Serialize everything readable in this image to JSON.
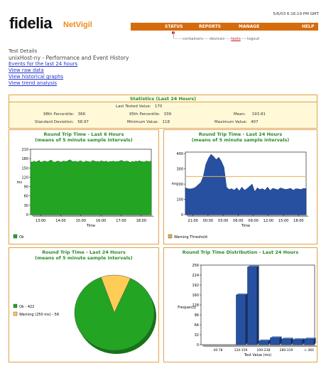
{
  "header": {
    "datetime": "5/6/03 6:16:19 PM GMT",
    "logo": "fidelia",
    "product": "NetVigil",
    "nav": [
      "STATUS",
      "REPORTS",
      "MANAGE",
      "HELP"
    ],
    "subnav": {
      "containers": "containers",
      "devices": "devices",
      "tests": "tests",
      "logout": "logout"
    }
  },
  "page": {
    "title": "Test Details",
    "subtitle": "unixHost-ny - Performance and Event History",
    "links": [
      "Events for the last 24 hours",
      "View raw data",
      "View historical graphs",
      "View trend analysis"
    ]
  },
  "stats": {
    "title": "Statistics (Last 24 Hours)",
    "last_tested_label": "Last Tested Value:",
    "last_tested": "170",
    "p98_label": "98th Percentile:",
    "p98": "366",
    "p95_label": "95th Percentile:",
    "p95": "339",
    "mean_label": "Mean:",
    "mean": "193.81",
    "std_label": "Standard Deviation:",
    "std": "58.97",
    "min_label": "Minimum Value:",
    "min": "118",
    "max_label": "Maximum Value:",
    "max": "407"
  },
  "panels": {
    "p1": {
      "title1": "Round Trip Time - Last 6 Hours",
      "title2": "(means of 5 minute sample intervals)"
    },
    "p2": {
      "title1": "Round Trip Time - Last 24 Hours",
      "title2": "(means of 5 minute sample intervals)"
    },
    "p3": {
      "title1": "Round Trip Time - Last 24 Hours",
      "title2": "(means of 5 minute sample intervals)"
    },
    "p4": {
      "title1": "Round Trip Time Distribution - Last 24 Hours",
      "title2": ""
    }
  },
  "colors": {
    "ok": "#23a523",
    "warning": "#ffcc55",
    "blue": "#2750a0",
    "threshold": "#e8b050",
    "orange": "#d56b0d"
  },
  "chart_data": [
    {
      "type": "area",
      "title": "Round Trip Time - Last 6 Hours",
      "subtitle": "(means of 5 minute sample intervals)",
      "xlabel": "Time",
      "ylabel": "ms",
      "x_ticks": [
        "13:00",
        "14:00",
        "15:00",
        "16:00",
        "17:00",
        "18:00"
      ],
      "y_ticks": [
        0,
        30,
        60,
        90,
        120,
        150,
        180,
        210
      ],
      "ylim": [
        0,
        210
      ],
      "legend": [
        "Ok"
      ],
      "values": [
        170,
        168,
        172,
        169,
        171,
        174,
        168,
        170,
        172,
        171,
        169,
        173,
        175,
        170,
        168,
        171,
        172,
        170,
        169,
        172,
        171,
        170,
        174,
        176,
        171,
        170,
        172,
        169,
        171,
        173,
        170,
        168,
        172,
        171,
        170,
        169,
        174,
        172,
        170,
        171,
        169,
        173,
        171,
        170,
        172,
        168,
        171,
        170,
        172,
        169,
        171,
        170,
        173,
        174,
        170,
        171,
        172,
        170,
        168,
        171,
        169,
        172,
        170,
        173,
        171,
        170,
        169,
        172,
        171,
        170,
        172
      ]
    },
    {
      "type": "area",
      "title": "Round Trip Time - Last 24 Hours",
      "subtitle": "(means of 5 minute sample intervals)",
      "xlabel": "Time",
      "ylabel": "ms",
      "x_ticks": [
        "21:00",
        "00:00",
        "03:00",
        "06:00",
        "09:00",
        "12:00",
        "15:00",
        "18:00"
      ],
      "y_ticks": [
        0,
        100,
        200,
        300,
        400
      ],
      "ylim": [
        0,
        410
      ],
      "threshold": 250,
      "legend": [
        "Warning Threshold"
      ],
      "values": [
        175,
        170,
        168,
        172,
        180,
        195,
        210,
        250,
        330,
        370,
        395,
        380,
        360,
        375,
        350,
        310,
        180,
        165,
        170,
        160,
        175,
        155,
        180,
        160,
        170,
        185,
        200,
        150,
        175,
        165,
        170,
        160,
        180,
        158,
        172,
        168,
        162,
        175,
        170,
        165,
        168,
        172,
        160,
        170,
        168,
        165,
        172,
        170
      ]
    },
    {
      "type": "pie",
      "title": "Round Trip Time - Last 24 Hours",
      "subtitle": "(means of 5 minute sample intervals)",
      "slices": [
        {
          "label": "Ok - 422",
          "value": 422
        },
        {
          "label": "Warning (250 ms) - 58",
          "value": 58
        }
      ]
    },
    {
      "type": "bar",
      "title": "Round Trip Time Distribution - Last 24 Hours",
      "xlabel": "Test Value (ms)",
      "ylabel": "Frequency",
      "categories": [
        "",
        "40-78",
        "",
        "120-159",
        "",
        "200-238",
        "",
        "280-319",
        "",
        "> 360"
      ],
      "values": [
        0,
        0,
        0,
        160,
        250,
        12,
        22,
        18,
        16,
        18
      ],
      "y_ticks": [
        0,
        32,
        64,
        96,
        128,
        160,
        192,
        224,
        256
      ],
      "ylim": [
        0,
        256
      ]
    }
  ]
}
